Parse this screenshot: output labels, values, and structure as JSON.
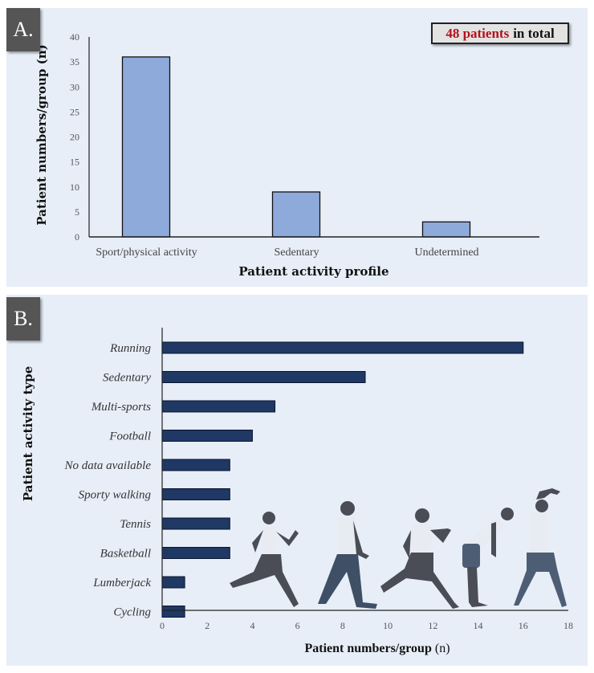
{
  "panels": {
    "a_label": "A.",
    "b_label": "B."
  },
  "annotation": {
    "count_text": "48 patients",
    "rest_text": "in total",
    "highlight_color": "#b3121c"
  },
  "chart_data": [
    {
      "type": "bar",
      "title": "",
      "categories": [
        "Sport/physical activity",
        "Sedentary",
        "Undetermined"
      ],
      "values": [
        36,
        9,
        3
      ],
      "xlabel": "Patient activity profile",
      "ylabel": "Patient numbers/group (n)",
      "ylim": [
        0,
        40
      ],
      "yticks": [
        0,
        5,
        10,
        15,
        20,
        25,
        30,
        35,
        40
      ],
      "bar_color": "#8eaadb",
      "grid": false
    },
    {
      "type": "bar",
      "orientation": "horizontal",
      "title": "",
      "categories": [
        "Running",
        "Sedentary",
        "Multi-sports",
        "Football",
        "No data available",
        "Sporty walking",
        "Tennis",
        "Basketball",
        "Lumberjack",
        "Cycling"
      ],
      "values": [
        16,
        9,
        5,
        4,
        3,
        3,
        3,
        3,
        1,
        1
      ],
      "xlabel_main": "Patient numbers/group",
      "xlabel_unit": "(n)",
      "ylabel": "Patient activity type",
      "xlim": [
        0,
        18
      ],
      "xticks": [
        0,
        2,
        4,
        6,
        8,
        10,
        12,
        14,
        16,
        18
      ],
      "bar_color": "#1f3864",
      "grid": false
    }
  ]
}
